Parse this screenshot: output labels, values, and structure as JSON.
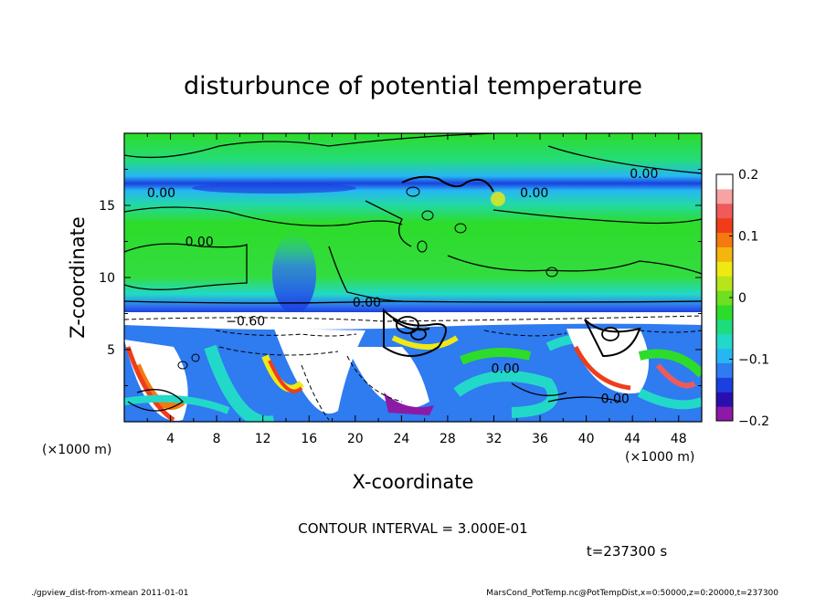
{
  "chart_data": {
    "type": "heatmap",
    "title": "disturbunce of potential temperature",
    "xlabel": "X-coordinate",
    "ylabel": "Z-coordinate",
    "x_unit": "(×1000 m)",
    "z_unit": "(×1000 m)",
    "xlim": [
      0,
      50
    ],
    "ylim": [
      0,
      20
    ],
    "x_ticks": [
      "4",
      "8",
      "12",
      "16",
      "20",
      "24",
      "28",
      "32",
      "36",
      "40",
      "44",
      "48"
    ],
    "y_ticks": [
      "5",
      "10",
      "15"
    ],
    "colorbar": {
      "range": [
        -0.2,
        0.2
      ],
      "tick_labels": [
        "0.2",
        "0.1",
        "0",
        "−0.1",
        "−0.2"
      ],
      "colors": [
        "#8c1aa6",
        "#2a0fb0",
        "#1c40e0",
        "#2f7bf0",
        "#27b6f4",
        "#22d9c9",
        "#1edc7c",
        "#2ddc2a",
        "#6ee01f",
        "#b8e51a",
        "#efe913",
        "#f5b50f",
        "#f5790f",
        "#ef3d1b",
        "#f05a5a",
        "#f7a3a3",
        "#ffffff"
      ]
    },
    "contour_labels": [
      {
        "text": "0.00",
        "x": 45,
        "z": 17.2
      },
      {
        "text": "0.00",
        "x": 3.2,
        "z": 15.9
      },
      {
        "text": "0.00",
        "x": 35.5,
        "z": 15.9
      },
      {
        "text": "0.00",
        "x": 6.5,
        "z": 12.5
      },
      {
        "text": "0.00",
        "x": 21,
        "z": 8.3
      },
      {
        "text": "−0.60",
        "x": 10.5,
        "z": 7.0
      },
      {
        "text": "0.00",
        "x": 33,
        "z": 3.7
      },
      {
        "text": "0.00",
        "x": 42.5,
        "z": 1.6
      }
    ],
    "contour_interval": "CONTOUR INTERVAL = 3.000E-01",
    "time": "t=237300 s"
  },
  "footer": {
    "left": "./gpview_dist-from-xmean  2011-01-01",
    "right": "MarsCond_PotTemp.nc@PotTempDist,x=0:50000,z=0:20000,t=237300"
  }
}
